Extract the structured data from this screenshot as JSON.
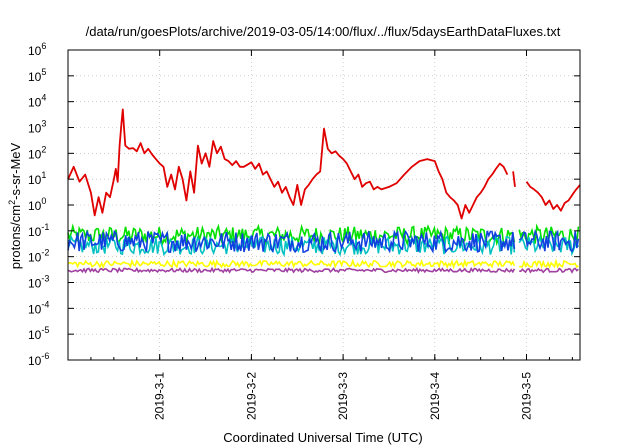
{
  "chart_data": {
    "type": "line",
    "title": "/data/run/goesPlots/archive/2019-03-05/14:00/flux/../flux/5daysEarthDataFluxes.txt",
    "xlabel": "Coordinated Universal Time (UTC)",
    "ylabel": "protons/cm²-s-sr-MeV",
    "ylabel_parts": {
      "base": "protons/cm",
      "sup": "2",
      "rest": "-s-sr-MeV"
    },
    "y_scale": "log",
    "ylim": [
      1e-06,
      1000000.0
    ],
    "y_ticks": [
      {
        "value": 1e-06,
        "base": "10",
        "exp": "-6"
      },
      {
        "value": 1e-05,
        "base": "10",
        "exp": "-5"
      },
      {
        "value": 0.0001,
        "base": "10",
        "exp": "-4"
      },
      {
        "value": 0.001,
        "base": "10",
        "exp": "-3"
      },
      {
        "value": 0.01,
        "base": "10",
        "exp": "-2"
      },
      {
        "value": 0.1,
        "base": "10",
        "exp": "-1"
      },
      {
        "value": 1,
        "base": "10",
        "exp": "0"
      },
      {
        "value": 10,
        "base": "10",
        "exp": "1"
      },
      {
        "value": 100,
        "base": "10",
        "exp": "2"
      },
      {
        "value": 1000,
        "base": "10",
        "exp": "3"
      },
      {
        "value": 10000,
        "base": "10",
        "exp": "4"
      },
      {
        "value": 100000,
        "base": "10",
        "exp": "5"
      },
      {
        "value": 1000000,
        "base": "10",
        "exp": "6"
      }
    ],
    "xlim": [
      "2019-02-28T00:00",
      "2019-03-05T14:00"
    ],
    "x_ticks": [
      "2019-3-1",
      "2019-3-2",
      "2019-3-3",
      "2019-3-4",
      "2019-3-5"
    ],
    "grid": true,
    "legend": "none",
    "series": [
      {
        "color": "#e00000",
        "role": "primary",
        "points": [
          [
            "2019-02-28T00:00",
            10
          ],
          [
            "2019-02-28T01:30",
            30
          ],
          [
            "2019-02-28T03:00",
            8
          ],
          [
            "2019-02-28T04:30",
            15
          ],
          [
            "2019-02-28T06:00",
            3
          ],
          [
            "2019-02-28T07:00",
            0.4
          ],
          [
            "2019-02-28T08:00",
            2
          ],
          [
            "2019-02-28T09:00",
            0.5
          ],
          [
            "2019-02-28T10:00",
            3
          ],
          [
            "2019-02-28T11:00",
            2
          ],
          [
            "2019-02-28T12:00",
            10
          ],
          [
            "2019-02-28T12:30",
            25
          ],
          [
            "2019-02-28T13:00",
            8
          ],
          [
            "2019-02-28T13:30",
            200
          ],
          [
            "2019-02-28T14:00",
            1500
          ],
          [
            "2019-02-28T14:20",
            5000
          ],
          [
            "2019-02-28T14:40",
            1000
          ],
          [
            "2019-02-28T15:00",
            200
          ],
          [
            "2019-02-28T16:00",
            150
          ],
          [
            "2019-02-28T17:00",
            160
          ],
          [
            "2019-02-28T18:00",
            120
          ],
          [
            "2019-02-28T19:00",
            250
          ],
          [
            "2019-02-28T20:00",
            100
          ],
          [
            "2019-02-28T21:00",
            150
          ],
          [
            "2019-02-28T22:00",
            90
          ],
          [
            "2019-02-28T23:00",
            60
          ],
          [
            "2019-03-01T00:00",
            40
          ],
          [
            "2019-03-01T01:00",
            30
          ],
          [
            "2019-03-01T02:00",
            5
          ],
          [
            "2019-03-01T03:00",
            15
          ],
          [
            "2019-03-01T04:00",
            4
          ],
          [
            "2019-03-01T05:00",
            30
          ],
          [
            "2019-03-01T06:00",
            10
          ],
          [
            "2019-03-01T07:00",
            1.5
          ],
          [
            "2019-03-01T08:00",
            20
          ],
          [
            "2019-03-01T09:00",
            3
          ],
          [
            "2019-03-01T10:00",
            200
          ],
          [
            "2019-03-01T11:00",
            40
          ],
          [
            "2019-03-01T12:00",
            100
          ],
          [
            "2019-03-01T13:00",
            30
          ],
          [
            "2019-03-01T14:00",
            300
          ],
          [
            "2019-03-01T15:00",
            100
          ],
          [
            "2019-03-01T16:00",
            180
          ],
          [
            "2019-03-01T17:00",
            60
          ],
          [
            "2019-03-01T18:00",
            50
          ],
          [
            "2019-03-01T19:00",
            35
          ],
          [
            "2019-03-01T20:00",
            50
          ],
          [
            "2019-03-01T21:00",
            30
          ],
          [
            "2019-03-01T22:00",
            30
          ],
          [
            "2019-03-02T00:00",
            45
          ],
          [
            "2019-03-02T01:00",
            25
          ],
          [
            "2019-03-02T02:00",
            40
          ],
          [
            "2019-03-02T03:00",
            15
          ],
          [
            "2019-03-02T04:00",
            20
          ],
          [
            "2019-03-02T05:00",
            10
          ],
          [
            "2019-03-02T06:00",
            5
          ],
          [
            "2019-03-02T07:00",
            8
          ],
          [
            "2019-03-02T08:00",
            3
          ],
          [
            "2019-03-02T09:00",
            5
          ],
          [
            "2019-03-02T10:00",
            2
          ],
          [
            "2019-03-02T11:00",
            1
          ],
          [
            "2019-03-02T12:00",
            6
          ],
          [
            "2019-03-02T13:00",
            1
          ],
          [
            "2019-03-02T14:00",
            4
          ],
          [
            "2019-03-02T15:00",
            6
          ],
          [
            "2019-03-02T16:00",
            10
          ],
          [
            "2019-03-02T17:00",
            15
          ],
          [
            "2019-03-02T18:00",
            20
          ],
          [
            "2019-03-02T19:00",
            900
          ],
          [
            "2019-03-02T20:00",
            150
          ],
          [
            "2019-03-02T21:00",
            100
          ],
          [
            "2019-03-02T22:00",
            120
          ],
          [
            "2019-03-02T23:00",
            80
          ],
          [
            "2019-03-03T00:00",
            60
          ],
          [
            "2019-03-03T01:00",
            40
          ],
          [
            "2019-03-03T02:00",
            20
          ],
          [
            "2019-03-03T03:00",
            10
          ],
          [
            "2019-03-03T04:00",
            15
          ],
          [
            "2019-03-03T05:00",
            5
          ],
          [
            "2019-03-03T06:00",
            7
          ],
          [
            "2019-03-03T07:00",
            8
          ],
          [
            "2019-03-03T08:00",
            4
          ],
          [
            "2019-03-03T09:00",
            5
          ],
          [
            "2019-03-03T10:00",
            4
          ],
          [
            "2019-03-03T12:00",
            5
          ],
          [
            "2019-03-03T14:00",
            7
          ],
          [
            "2019-03-03T16:00",
            15
          ],
          [
            "2019-03-03T18:00",
            30
          ],
          [
            "2019-03-03T20:00",
            50
          ],
          [
            "2019-03-03T22:00",
            60
          ],
          [
            "2019-03-04T00:00",
            50
          ],
          [
            "2019-03-04T01:00",
            20
          ],
          [
            "2019-03-04T02:00",
            10
          ],
          [
            "2019-03-04T03:00",
            3
          ],
          [
            "2019-03-04T04:00",
            2
          ],
          [
            "2019-03-04T05:00",
            1.5
          ],
          [
            "2019-03-04T06:00",
            1
          ],
          [
            "2019-03-04T07:00",
            0.3
          ],
          [
            "2019-03-04T08:00",
            1
          ],
          [
            "2019-03-04T09:00",
            0.5
          ],
          [
            "2019-03-04T10:00",
            1
          ],
          [
            "2019-03-04T11:00",
            2
          ],
          [
            "2019-03-04T12:00",
            3
          ],
          [
            "2019-03-04T13:00",
            5
          ],
          [
            "2019-03-04T14:00",
            10
          ],
          [
            "2019-03-04T15:00",
            15
          ],
          [
            "2019-03-04T16:00",
            25
          ],
          [
            "2019-03-04T17:00",
            40
          ],
          [
            "2019-03-04T18:00",
            30
          ],
          [
            "2019-03-04T19:00",
            15
          ],
          [
            "2019-03-04T19:30",
            null
          ],
          [
            "2019-03-04T20:30",
            20
          ],
          [
            "2019-03-04T21:00",
            5
          ],
          [
            "2019-03-04T22:00",
            null
          ],
          [
            "2019-03-05T00:00",
            8
          ],
          [
            "2019-03-05T01:00",
            5
          ],
          [
            "2019-03-05T02:00",
            4
          ],
          [
            "2019-03-05T03:00",
            3
          ],
          [
            "2019-03-05T04:00",
            2
          ],
          [
            "2019-03-05T05:00",
            1
          ],
          [
            "2019-03-05T06:00",
            1.5
          ],
          [
            "2019-03-05T07:00",
            0.7
          ],
          [
            "2019-03-05T08:00",
            1
          ],
          [
            "2019-03-05T09:00",
            0.6
          ],
          [
            "2019-03-05T10:00",
            1.2
          ],
          [
            "2019-03-05T11:00",
            1.5
          ],
          [
            "2019-03-05T12:00",
            2.5
          ],
          [
            "2019-03-05T13:00",
            4
          ],
          [
            "2019-03-05T14:00",
            6
          ]
        ]
      },
      {
        "color": "#00e000",
        "role": "band",
        "low": 0.03,
        "high": 0.15,
        "gap": [
          "2019-03-04T21:00",
          "2019-03-04T22:00"
        ]
      },
      {
        "color": "#00c0c0",
        "role": "band",
        "low": 0.012,
        "high": 0.06,
        "gap": [
          "2019-03-04T21:00",
          "2019-03-04T22:00"
        ]
      },
      {
        "color": "#1040e0",
        "role": "band",
        "low": 0.015,
        "high": 0.1,
        "gap": [
          "2019-03-04T21:00",
          "2019-03-04T22:00"
        ]
      },
      {
        "color": "#ffff00",
        "role": "band",
        "low": 0.004,
        "high": 0.007,
        "gap": [
          "2019-03-04T21:00",
          "2019-03-04T22:00"
        ]
      },
      {
        "color": "#a040a0",
        "role": "band",
        "low": 0.0025,
        "high": 0.0035,
        "gap": [
          "2019-03-04T21:00",
          "2019-03-04T22:00"
        ]
      }
    ]
  }
}
